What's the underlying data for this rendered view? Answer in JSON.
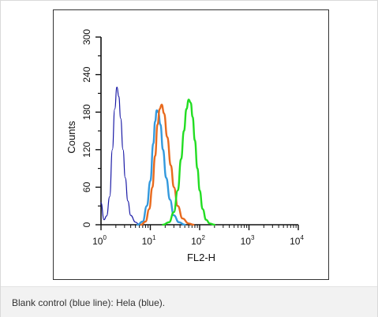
{
  "caption": "Blank control (blue line): Hela (blue).",
  "chart_data": {
    "type": "line",
    "xlabel": "FL2-H",
    "ylabel": "Counts",
    "xscale": "log",
    "xlim": [
      1,
      10000
    ],
    "ylim": [
      0,
      300
    ],
    "x_ticks": [
      {
        "base": "10",
        "exp": "0",
        "value": 1
      },
      {
        "base": "10",
        "exp": "1",
        "value": 10
      },
      {
        "base": "10",
        "exp": "2",
        "value": 100
      },
      {
        "base": "10",
        "exp": "3",
        "value": 1000
      },
      {
        "base": "10",
        "exp": "4",
        "value": 10000
      }
    ],
    "y_ticks": [
      "0",
      "60",
      "120",
      "180",
      "240",
      "300"
    ],
    "grid": false,
    "series": [
      {
        "color": "#1a1aa6",
        "width": 1.2,
        "points": [
          [
            1.0,
            35
          ],
          [
            1.15,
            8
          ],
          [
            1.3,
            14
          ],
          [
            1.5,
            45
          ],
          [
            1.7,
            120
          ],
          [
            1.9,
            185
          ],
          [
            2.1,
            220
          ],
          [
            2.3,
            205
          ],
          [
            2.5,
            170
          ],
          [
            2.8,
            120
          ],
          [
            3.1,
            75
          ],
          [
            3.5,
            38
          ],
          [
            4.0,
            15
          ],
          [
            5.0,
            4
          ],
          [
            6.0,
            0
          ]
        ]
      },
      {
        "color": "#3399dd",
        "width": 2.4,
        "points": [
          [
            5.5,
            0
          ],
          [
            7.0,
            5
          ],
          [
            8.5,
            30
          ],
          [
            10,
            70
          ],
          [
            11.5,
            130
          ],
          [
            12.5,
            165
          ],
          [
            13.5,
            183
          ],
          [
            14.5,
            180
          ],
          [
            16,
            160
          ],
          [
            18,
            120
          ],
          [
            21,
            75
          ],
          [
            25,
            40
          ],
          [
            30,
            15
          ],
          [
            38,
            4
          ],
          [
            50,
            0
          ]
        ]
      },
      {
        "color": "#e86a1e",
        "width": 2.4,
        "points": [
          [
            6.5,
            0
          ],
          [
            8.0,
            5
          ],
          [
            9.5,
            25
          ],
          [
            11,
            60
          ],
          [
            12.5,
            110
          ],
          [
            14,
            160
          ],
          [
            15.5,
            185
          ],
          [
            17,
            192
          ],
          [
            19,
            178
          ],
          [
            22,
            140
          ],
          [
            26,
            95
          ],
          [
            30,
            60
          ],
          [
            36,
            30
          ],
          [
            45,
            10
          ],
          [
            60,
            2
          ],
          [
            75,
            0
          ]
        ]
      },
      {
        "color": "#22dd22",
        "width": 2.4,
        "points": [
          [
            18,
            0
          ],
          [
            24,
            4
          ],
          [
            30,
            20
          ],
          [
            36,
            55
          ],
          [
            42,
            105
          ],
          [
            48,
            150
          ],
          [
            54,
            185
          ],
          [
            60,
            200
          ],
          [
            66,
            195
          ],
          [
            72,
            172
          ],
          [
            80,
            135
          ],
          [
            90,
            90
          ],
          [
            100,
            55
          ],
          [
            115,
            25
          ],
          [
            135,
            8
          ],
          [
            160,
            2
          ],
          [
            200,
            0
          ]
        ]
      }
    ]
  }
}
